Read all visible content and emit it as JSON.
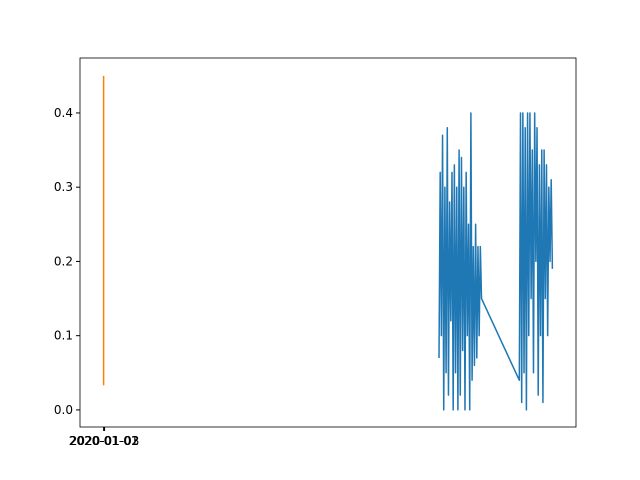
{
  "chart_data": {
    "type": "line",
    "series": [
      {
        "color": "#1f77b4",
        "x": [
          71,
          71.25,
          71.5,
          71.75,
          72,
          72.25,
          72.5,
          72.75,
          73,
          73.25,
          73.5,
          73.75,
          74,
          74.25,
          74.5,
          74.75,
          75,
          75.25,
          75.5,
          75.75,
          76,
          76.25,
          76.5,
          76.75,
          77,
          77.25,
          77.5,
          77.75,
          78,
          78.25,
          78.5,
          78.75,
          79,
          79.25,
          79.5,
          79.75,
          80,
          88,
          88.25,
          88.5,
          88.75,
          89,
          89.25,
          89.5,
          89.75,
          90,
          90.25,
          90.5,
          90.75,
          91,
          91.25,
          91.5,
          91.75,
          92,
          92.25,
          92.5,
          92.75,
          93,
          93.25,
          93.5,
          93.75,
          94,
          94.25,
          94.5,
          94.75,
          95
        ],
        "values": [
          0.07,
          0.32,
          0.1,
          0.37,
          0.0,
          0.3,
          0.05,
          0.38,
          0.02,
          0.28,
          0.12,
          0.32,
          0.0,
          0.33,
          0.05,
          0.3,
          0.0,
          0.35,
          0.02,
          0.34,
          0.08,
          0.3,
          0.0,
          0.32,
          0.1,
          0.25,
          0.0,
          0.4,
          0.04,
          0.22,
          0.06,
          0.25,
          0.07,
          0.22,
          0.1,
          0.22,
          0.15,
          0.04,
          0.4,
          0.01,
          0.4,
          0.05,
          0.38,
          0.0,
          0.4,
          0.1,
          0.4,
          0.15,
          0.35,
          0.05,
          0.4,
          0.2,
          0.38,
          0.02,
          0.33,
          0.1,
          0.35,
          0.01,
          0.35,
          0.15,
          0.33,
          0.1,
          0.3,
          0.2,
          0.31,
          0.19
        ]
      },
      {
        "color": "#ff7f0e",
        "x": [
          0,
          0
        ],
        "values": [
          0.033,
          0.45
        ]
      }
    ],
    "xlim": [
      -5,
      100
    ],
    "xticks": [
      {
        "value": 0,
        "label": "2020-01-01"
      },
      {
        "value": 0.1,
        "label": "2020-01-02"
      },
      {
        "value": 0.2,
        "label": "2020-01-03"
      }
    ],
    "ylim": [
      -0.023,
      0.474
    ],
    "yticks": [
      {
        "value": 0,
        "label": "0.0"
      },
      0.1,
      0.2,
      0.3,
      0.4
    ],
    "grid": false
  }
}
